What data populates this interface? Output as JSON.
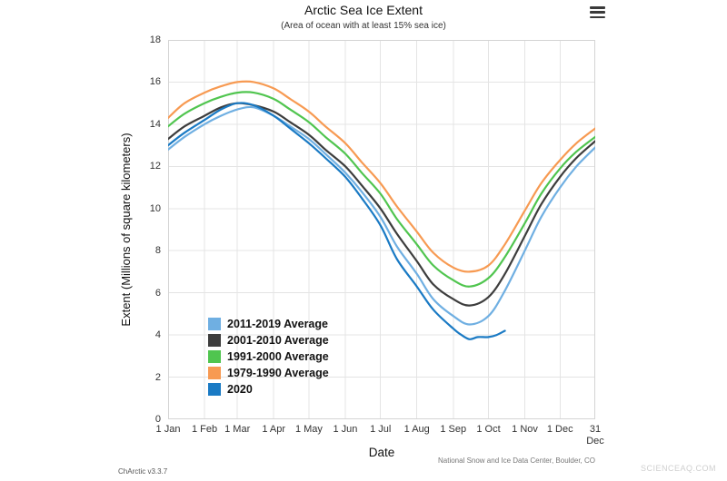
{
  "footer": {
    "credit": "National Snow and Ice Data Center, Boulder, CO",
    "version": "ChArctic v3.3.7",
    "watermark": "SCIENCEAQ.COM"
  },
  "chart_data": {
    "type": "line",
    "title": "Arctic Sea Ice Extent",
    "subtitle": "(Area of ocean with at least 15% sea ice)",
    "xlabel": "Date",
    "ylabel": "Extent (Millions of square kilometers)",
    "ylim": [
      0,
      18
    ],
    "ytick_step": 2,
    "xlim": [
      1,
      365
    ],
    "x_unit": "day_of_year",
    "grid": true,
    "legend_position": "inside-lower-left",
    "xticks": [
      {
        "day": 1,
        "label": "1 Jan"
      },
      {
        "day": 32,
        "label": "1 Feb"
      },
      {
        "day": 60,
        "label": "1 Mar"
      },
      {
        "day": 91,
        "label": "1 Apr"
      },
      {
        "day": 121,
        "label": "1 May"
      },
      {
        "day": 152,
        "label": "1 Jun"
      },
      {
        "day": 182,
        "label": "1 Jul"
      },
      {
        "day": 213,
        "label": "1 Aug"
      },
      {
        "day": 244,
        "label": "1 Sep"
      },
      {
        "day": 274,
        "label": "1 Oct"
      },
      {
        "day": 305,
        "label": "1 Nov"
      },
      {
        "day": 335,
        "label": "1 Dec"
      },
      {
        "day": 365,
        "label": "31\nDec"
      }
    ],
    "series": [
      {
        "name": "2011-2019 Average",
        "color": "#6fafe2",
        "x": [
          1,
          15,
          32,
          46,
          60,
          74,
          91,
          105,
          121,
          135,
          152,
          166,
          182,
          196,
          213,
          227,
          244,
          258,
          274,
          288,
          305,
          319,
          335,
          349,
          365
        ],
        "y": [
          12.8,
          13.4,
          14.0,
          14.4,
          14.7,
          14.8,
          14.4,
          13.9,
          13.3,
          12.6,
          11.7,
          10.8,
          9.6,
          8.2,
          6.9,
          5.7,
          4.9,
          4.5,
          4.9,
          6.1,
          8.0,
          9.6,
          11.0,
          12.0,
          12.9
        ]
      },
      {
        "name": "2001-2010 Average",
        "color": "#3d3d3d",
        "x": [
          1,
          15,
          32,
          46,
          60,
          74,
          91,
          105,
          121,
          135,
          152,
          166,
          182,
          196,
          213,
          227,
          244,
          258,
          274,
          288,
          305,
          319,
          335,
          349,
          365
        ],
        "y": [
          13.3,
          13.9,
          14.4,
          14.8,
          15.0,
          14.9,
          14.6,
          14.1,
          13.5,
          12.8,
          12.0,
          11.1,
          10.0,
          8.8,
          7.5,
          6.4,
          5.7,
          5.4,
          5.8,
          6.9,
          8.7,
          10.2,
          11.5,
          12.4,
          13.2
        ]
      },
      {
        "name": "1991-2000 Average",
        "color": "#50c54f",
        "x": [
          1,
          15,
          32,
          46,
          60,
          74,
          91,
          105,
          121,
          135,
          152,
          166,
          182,
          196,
          213,
          227,
          244,
          258,
          274,
          288,
          305,
          319,
          335,
          349,
          365
        ],
        "y": [
          13.9,
          14.5,
          15.0,
          15.3,
          15.5,
          15.5,
          15.2,
          14.7,
          14.1,
          13.4,
          12.6,
          11.7,
          10.7,
          9.5,
          8.3,
          7.3,
          6.6,
          6.3,
          6.7,
          7.7,
          9.3,
          10.7,
          11.9,
          12.7,
          13.4
        ]
      },
      {
        "name": "1979-1990 Average",
        "color": "#f79a52",
        "x": [
          1,
          15,
          32,
          46,
          60,
          74,
          91,
          105,
          121,
          135,
          152,
          166,
          182,
          196,
          213,
          227,
          244,
          258,
          274,
          288,
          305,
          319,
          335,
          349,
          365
        ],
        "y": [
          14.3,
          15.0,
          15.5,
          15.8,
          16.0,
          16.0,
          15.7,
          15.2,
          14.6,
          13.9,
          13.1,
          12.2,
          11.2,
          10.1,
          8.9,
          7.9,
          7.2,
          7.0,
          7.3,
          8.3,
          9.9,
          11.2,
          12.3,
          13.1,
          13.8
        ]
      },
      {
        "name": "2020",
        "color": "#1a7ac4",
        "x": [
          1,
          15,
          32,
          46,
          60,
          74,
          91,
          105,
          121,
          135,
          152,
          166,
          182,
          196,
          213,
          227,
          244,
          251,
          258,
          265,
          274,
          281,
          288
        ],
        "y": [
          13.0,
          13.6,
          14.2,
          14.7,
          15.0,
          14.9,
          14.4,
          13.8,
          13.1,
          12.4,
          11.5,
          10.5,
          9.2,
          7.6,
          6.3,
          5.2,
          4.3,
          4.0,
          3.8,
          3.9,
          3.9,
          4.0,
          4.2
        ]
      }
    ]
  }
}
